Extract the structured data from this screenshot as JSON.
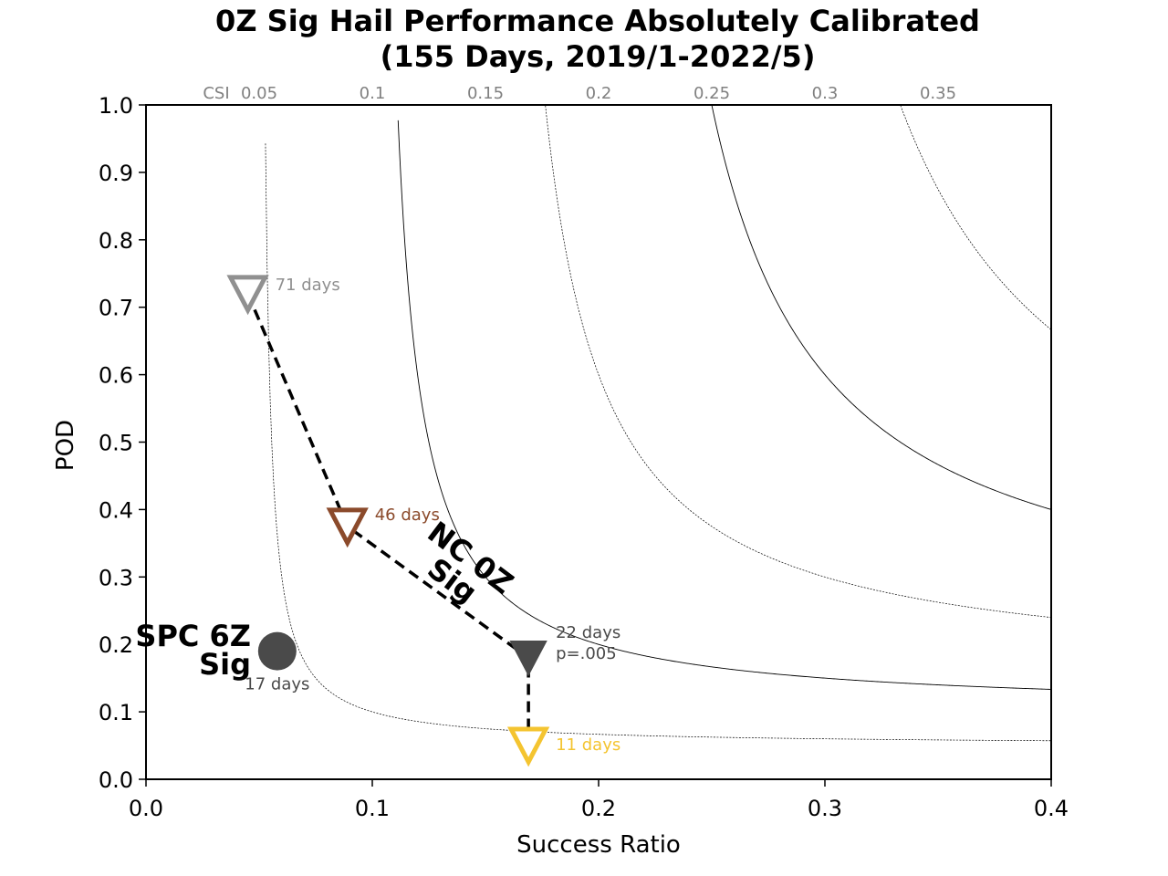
{
  "chart_data": {
    "type": "performance-diagram",
    "title_line1": "0Z Sig Hail Performance Absolutely Calibrated",
    "title_line2": "(155 Days, 2019/1-2022/5)",
    "xlabel": "Success Ratio",
    "ylabel": "POD",
    "xlim": [
      0.0,
      0.4
    ],
    "ylim": [
      0.0,
      1.0
    ],
    "x_ticks": [
      0.0,
      0.1,
      0.2,
      0.3,
      0.4
    ],
    "x_tick_labels": [
      "0.0",
      "0.1",
      "0.2",
      "0.3",
      "0.4"
    ],
    "y_ticks": [
      0.0,
      0.1,
      0.2,
      0.3,
      0.4,
      0.5,
      0.6,
      0.7,
      0.8,
      0.9,
      1.0
    ],
    "y_tick_labels": [
      "0.0",
      "0.1",
      "0.2",
      "0.3",
      "0.4",
      "0.5",
      "0.6",
      "0.7",
      "0.8",
      "0.9",
      "1.0"
    ],
    "csi_prefix": "CSI",
    "csi_contours": [
      {
        "value": 0.05,
        "label": "0.05",
        "style": "dotted"
      },
      {
        "value": 0.1,
        "label": "0.1",
        "style": "solid"
      },
      {
        "value": 0.15,
        "label": "0.15",
        "style": "dotted"
      },
      {
        "value": 0.2,
        "label": "0.2",
        "style": "solid"
      },
      {
        "value": 0.25,
        "label": "0.25",
        "style": "dotted"
      },
      {
        "value": 0.3,
        "label": "0.3",
        "style": "solid"
      },
      {
        "value": 0.35,
        "label": "0.35",
        "style": "dotted"
      }
    ],
    "series": [
      {
        "name": "NC 0Z Sig",
        "line_style": "dashed",
        "line_color": "#000000",
        "points": [
          {
            "x": 0.045,
            "y": 0.72,
            "marker": "triangle-down-open",
            "color": "#909090",
            "label": "71 days"
          },
          {
            "x": 0.089,
            "y": 0.375,
            "marker": "triangle-down-open",
            "color": "#8b4a2b",
            "label": "46 days"
          },
          {
            "x": 0.169,
            "y": 0.18,
            "marker": "triangle-down-filled",
            "color": "#4a4a4a",
            "label": "22 days",
            "label2": "p=.005"
          },
          {
            "x": 0.169,
            "y": 0.05,
            "marker": "triangle-down-open",
            "color": "#f4c430",
            "label": "11 days"
          }
        ]
      },
      {
        "name": "SPC 6Z Sig",
        "points": [
          {
            "x": 0.058,
            "y": 0.19,
            "marker": "circle-filled",
            "color": "#4a4a4a",
            "label": "17 days"
          }
        ]
      }
    ],
    "annotations": {
      "nc_line1": "NC 0Z",
      "nc_line2": "Sig",
      "spc_line1": "SPC 6Z",
      "spc_line2": "Sig"
    }
  }
}
